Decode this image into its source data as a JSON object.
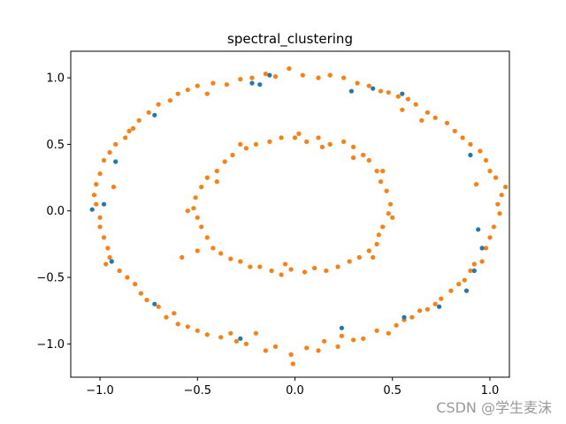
{
  "chart_data": {
    "type": "scatter",
    "title": "spectral_clustering",
    "xlabel": "",
    "ylabel": "",
    "xlim": [
      -1.15,
      1.1
    ],
    "ylim": [
      -1.25,
      1.2
    ],
    "xticks": [
      -1.0,
      -0.5,
      0.0,
      0.5,
      1.0
    ],
    "yticks": [
      -1.0,
      -0.5,
      0.0,
      0.5,
      1.0
    ],
    "xtick_labels": [
      "−1.0",
      "−0.5",
      "0.0",
      "0.5",
      "1.0"
    ],
    "ytick_labels": [
      "−1.0",
      "−0.5",
      "0.0",
      "0.5",
      "1.0"
    ],
    "grid": false,
    "series": [
      {
        "color": "#ff7f0e",
        "points": [
          [
            -0.03,
            1.07
          ],
          [
            0.04,
            1.02
          ],
          [
            -0.1,
            1.01
          ],
          [
            -0.15,
            1.03
          ],
          [
            -0.22,
            1.0
          ],
          [
            -0.28,
            0.99
          ],
          [
            -0.35,
            0.95
          ],
          [
            -0.42,
            0.96
          ],
          [
            -0.5,
            0.94
          ],
          [
            -0.55,
            0.91
          ],
          [
            -0.6,
            0.88
          ],
          [
            -0.64,
            0.83
          ],
          [
            -0.7,
            0.8
          ],
          [
            -0.75,
            0.74
          ],
          [
            -0.8,
            0.68
          ],
          [
            -0.83,
            0.62
          ],
          [
            -0.87,
            0.55
          ],
          [
            -0.92,
            0.5
          ],
          [
            -0.95,
            0.44
          ],
          [
            -0.98,
            0.38
          ],
          [
            -1.0,
            0.28
          ],
          [
            -1.02,
            0.2
          ],
          [
            -1.03,
            0.12
          ],
          [
            -1.02,
            0.05
          ],
          [
            -1.0,
            -0.05
          ],
          [
            -1.0,
            -0.12
          ],
          [
            -0.98,
            -0.2
          ],
          [
            -0.96,
            -0.28
          ],
          [
            -0.97,
            -0.4
          ],
          [
            -0.95,
            -0.35
          ],
          [
            -0.9,
            -0.45
          ],
          [
            -0.86,
            -0.5
          ],
          [
            -0.82,
            -0.55
          ],
          [
            -0.79,
            -0.62
          ],
          [
            -0.76,
            -0.67
          ],
          [
            -0.7,
            -0.72
          ],
          [
            -0.66,
            -0.8
          ],
          [
            -0.6,
            -0.85
          ],
          [
            -0.55,
            -0.87
          ],
          [
            -0.5,
            -0.9
          ],
          [
            -0.45,
            -0.93
          ],
          [
            -0.38,
            -0.95
          ],
          [
            -0.3,
            -0.98
          ],
          [
            -0.25,
            -1.0
          ],
          [
            -0.2,
            -0.92
          ],
          [
            -0.15,
            -1.05
          ],
          [
            -0.1,
            -1.02
          ],
          [
            -0.02,
            -1.08
          ],
          [
            -0.01,
            -1.15
          ],
          [
            0.06,
            -1.03
          ],
          [
            0.12,
            -1.05
          ],
          [
            0.15,
            -0.98
          ],
          [
            0.22,
            -1.02
          ],
          [
            0.3,
            -0.97
          ],
          [
            0.35,
            -0.96
          ],
          [
            0.42,
            -0.9
          ],
          [
            0.48,
            -0.92
          ],
          [
            0.52,
            -0.86
          ],
          [
            0.56,
            -0.82
          ],
          [
            0.6,
            -0.8
          ],
          [
            0.64,
            -0.75
          ],
          [
            0.68,
            -0.74
          ],
          [
            0.72,
            -0.7
          ],
          [
            0.75,
            -0.66
          ],
          [
            0.8,
            -0.6
          ],
          [
            0.84,
            -0.55
          ],
          [
            0.87,
            -0.52
          ],
          [
            0.9,
            -0.45
          ],
          [
            0.92,
            -0.4
          ],
          [
            0.96,
            -0.38
          ],
          [
            0.98,
            -0.28
          ],
          [
            1.0,
            -0.2
          ],
          [
            1.02,
            -0.12
          ],
          [
            1.05,
            -0.02
          ],
          [
            1.04,
            0.05
          ],
          [
            1.06,
            0.12
          ],
          [
            1.08,
            0.18
          ],
          [
            1.03,
            0.25
          ],
          [
            1.0,
            0.3
          ],
          [
            0.98,
            0.38
          ],
          [
            0.95,
            0.45
          ],
          [
            0.9,
            0.5
          ],
          [
            0.86,
            0.55
          ],
          [
            0.82,
            0.6
          ],
          [
            0.78,
            0.66
          ],
          [
            0.72,
            0.7
          ],
          [
            0.68,
            0.74
          ],
          [
            0.62,
            0.8
          ],
          [
            0.58,
            0.84
          ],
          [
            0.53,
            0.86
          ],
          [
            0.48,
            0.89
          ],
          [
            0.44,
            0.9
          ],
          [
            0.38,
            0.94
          ],
          [
            0.32,
            0.96
          ],
          [
            0.25,
            1.0
          ],
          [
            0.18,
            1.02
          ],
          [
            0.12,
            1.0
          ],
          [
            -0.45,
            0.88
          ],
          [
            0.65,
            0.68
          ],
          [
            -0.85,
            0.6
          ],
          [
            0.93,
            0.2
          ],
          [
            -0.93,
            0.18
          ],
          [
            0.55,
            0.76
          ],
          [
            -0.62,
            -0.77
          ],
          [
            0.24,
            -0.94
          ],
          [
            -0.33,
            -0.92
          ],
          [
            0.0,
            0.55
          ],
          [
            0.06,
            0.52
          ],
          [
            0.12,
            0.55
          ],
          [
            0.18,
            0.5
          ],
          [
            0.25,
            0.52
          ],
          [
            0.3,
            0.48
          ],
          [
            0.35,
            0.42
          ],
          [
            0.38,
            0.38
          ],
          [
            0.42,
            0.3
          ],
          [
            0.44,
            0.22
          ],
          [
            0.47,
            0.15
          ],
          [
            0.49,
            0.05
          ],
          [
            0.48,
            -0.02
          ],
          [
            0.5,
            -0.05
          ],
          [
            0.45,
            -0.12
          ],
          [
            0.43,
            -0.18
          ],
          [
            0.42,
            -0.25
          ],
          [
            0.38,
            -0.3
          ],
          [
            0.33,
            -0.35
          ],
          [
            0.28,
            -0.38
          ],
          [
            0.22,
            -0.42
          ],
          [
            0.16,
            -0.45
          ],
          [
            0.1,
            -0.43
          ],
          [
            0.05,
            -0.46
          ],
          [
            -0.02,
            -0.44
          ],
          [
            -0.07,
            -0.48
          ],
          [
            -0.12,
            -0.45
          ],
          [
            -0.18,
            -0.42
          ],
          [
            -0.23,
            -0.42
          ],
          [
            -0.28,
            -0.38
          ],
          [
            -0.33,
            -0.36
          ],
          [
            -0.38,
            -0.32
          ],
          [
            -0.42,
            -0.28
          ],
          [
            -0.45,
            -0.2
          ],
          [
            -0.48,
            -0.12
          ],
          [
            -0.5,
            -0.05
          ],
          [
            -0.52,
            0.02
          ],
          [
            -0.51,
            0.1
          ],
          [
            -0.48,
            0.18
          ],
          [
            -0.45,
            0.25
          ],
          [
            -0.4,
            0.3
          ],
          [
            -0.36,
            0.37
          ],
          [
            -0.32,
            0.42
          ],
          [
            -0.25,
            0.47
          ],
          [
            -0.2,
            0.5
          ],
          [
            -0.13,
            0.52
          ],
          [
            -0.07,
            0.55
          ],
          [
            0.02,
            0.58
          ],
          [
            -0.5,
            -0.3
          ],
          [
            -0.55,
            0.0
          ],
          [
            0.3,
            0.4
          ],
          [
            -0.28,
            0.5
          ],
          [
            0.45,
            0.3
          ],
          [
            -0.58,
            -0.35
          ],
          [
            0.14,
            0.48
          ],
          [
            -0.4,
            0.22
          ],
          [
            0.4,
            -0.35
          ],
          [
            -0.05,
            -0.4
          ]
        ]
      },
      {
        "color": "#1f77b4",
        "points": [
          [
            -0.13,
            1.02
          ],
          [
            -0.18,
            0.95
          ],
          [
            -0.22,
            0.96
          ],
          [
            0.4,
            0.92
          ],
          [
            0.29,
            0.9
          ],
          [
            0.55,
            0.88
          ],
          [
            -0.72,
            0.72
          ],
          [
            -0.92,
            0.37
          ],
          [
            -0.98,
            0.05
          ],
          [
            -1.04,
            0.01
          ],
          [
            -0.94,
            -0.38
          ],
          [
            -0.72,
            -0.7
          ],
          [
            0.9,
            0.42
          ],
          [
            0.94,
            -0.14
          ],
          [
            0.96,
            -0.28
          ],
          [
            0.92,
            -0.45
          ],
          [
            0.88,
            -0.6
          ],
          [
            0.74,
            -0.72
          ],
          [
            0.56,
            -0.8
          ],
          [
            0.24,
            -0.88
          ],
          [
            -0.28,
            -0.96
          ]
        ]
      }
    ]
  },
  "watermark": "CSDN @学生麦沫"
}
